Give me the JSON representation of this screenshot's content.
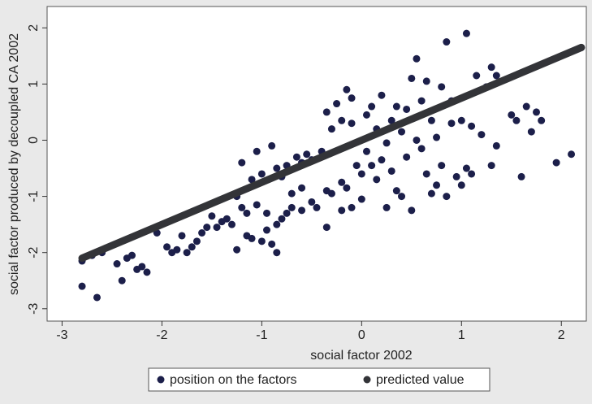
{
  "chart_data": {
    "type": "scatter",
    "x_label": "social factor 2002",
    "y_label": "social factor produced by decoupled CA 2002",
    "xlim": [
      -3.15,
      2.25
    ],
    "ylim": [
      -3.22,
      2.38
    ],
    "xticks": [
      -3,
      -2,
      -1,
      0,
      1,
      2
    ],
    "yticks": [
      -3,
      -2,
      -1,
      0,
      1,
      2
    ],
    "legend": "bottom",
    "series": [
      {
        "name": "position on the factors",
        "color": "#1c1f4a",
        "type": "scatter",
        "x": [
          -2.8,
          -2.65,
          -2.8,
          -2.7,
          -2.6,
          -2.45,
          -2.4,
          -2.35,
          -2.3,
          -2.25,
          -2.2,
          -2.15,
          -2.05,
          -1.95,
          -1.9,
          -1.85,
          -1.8,
          -1.75,
          -1.7,
          -1.65,
          -1.6,
          -1.55,
          -1.5,
          -1.45,
          -1.4,
          -1.35,
          -1.3,
          -1.25,
          -1.2,
          -1.15,
          -1.25,
          -1.15,
          -1.1,
          -1.05,
          -1.0,
          -0.95,
          -0.95,
          -0.9,
          -0.85,
          -0.8,
          -0.85,
          -0.75,
          -0.7,
          -1.2,
          -1.1,
          -1.05,
          -1.0,
          -0.9,
          -0.85,
          -0.8,
          -0.75,
          -0.7,
          -0.65,
          -0.6,
          -0.55,
          -0.5,
          -0.6,
          -0.5,
          -0.45,
          -0.4,
          -0.35,
          -0.35,
          -0.35,
          -0.3,
          -0.25,
          -0.2,
          -0.2,
          -0.15,
          -0.2,
          -0.1,
          -0.1,
          -0.05,
          -0.15,
          0.0,
          0.0,
          0.05,
          0.05,
          -0.1,
          0.1,
          0.1,
          0.15,
          0.15,
          0.2,
          0.2,
          0.25,
          0.25,
          0.3,
          0.3,
          0.35,
          0.35,
          0.4,
          0.4,
          0.45,
          0.45,
          0.5,
          0.5,
          0.55,
          0.55,
          0.6,
          0.6,
          0.65,
          0.65,
          0.7,
          0.7,
          0.75,
          0.75,
          0.8,
          0.8,
          0.85,
          0.85,
          0.9,
          0.9,
          0.95,
          1.0,
          1.0,
          1.05,
          1.05,
          1.1,
          1.1,
          1.15,
          1.2,
          1.25,
          1.3,
          1.3,
          1.35,
          1.35,
          1.5,
          1.55,
          1.6,
          1.65,
          1.7,
          1.75,
          1.8,
          1.95,
          2.1,
          2.2,
          -0.6,
          -0.3
        ],
        "values": [
          -2.6,
          -2.8,
          -2.15,
          -2.05,
          -2.0,
          -2.2,
          -2.5,
          -2.1,
          -2.05,
          -2.3,
          -2.25,
          -2.35,
          -1.65,
          -1.9,
          -2.0,
          -1.95,
          -1.7,
          -2.0,
          -1.9,
          -1.8,
          -1.65,
          -1.55,
          -1.35,
          -1.55,
          -1.45,
          -1.4,
          -1.5,
          -1.0,
          -1.2,
          -1.3,
          -1.95,
          -1.7,
          -1.75,
          -1.15,
          -1.8,
          -1.3,
          -1.6,
          -1.85,
          -1.5,
          -1.4,
          -2.0,
          -1.3,
          -1.2,
          -0.4,
          -0.7,
          -0.2,
          -0.6,
          -0.1,
          -0.5,
          -0.65,
          -0.45,
          -0.95,
          -0.3,
          -0.4,
          -0.25,
          -0.35,
          -1.25,
          -1.1,
          -1.2,
          -0.2,
          -0.9,
          -1.55,
          0.5,
          0.2,
          0.65,
          0.35,
          -0.75,
          -0.85,
          -1.25,
          0.3,
          0.75,
          -0.45,
          0.9,
          -0.6,
          -1.05,
          0.45,
          -0.2,
          -1.2,
          0.6,
          -0.45,
          0.2,
          -0.7,
          -0.35,
          0.8,
          -0.05,
          -1.2,
          -0.55,
          0.35,
          0.6,
          -0.9,
          0.15,
          -1.0,
          -0.3,
          0.55,
          1.1,
          -1.25,
          1.45,
          0.0,
          -0.15,
          0.7,
          1.05,
          -0.6,
          0.35,
          -0.95,
          0.05,
          -0.8,
          0.95,
          -0.45,
          -1.0,
          1.75,
          0.3,
          0.7,
          -0.65,
          0.35,
          -0.8,
          1.9,
          -0.5,
          0.25,
          -0.6,
          1.15,
          0.1,
          0.95,
          1.3,
          -0.45,
          1.15,
          -0.1,
          0.45,
          0.35,
          -0.65,
          0.6,
          0.15,
          0.5,
          0.35,
          -0.4,
          -0.25,
          1.65,
          -0.85,
          -0.95
        ]
      },
      {
        "name": "predicted value",
        "color": "#333438",
        "type": "line",
        "x": [
          -2.8,
          2.2
        ],
        "values": [
          -2.1,
          1.65
        ]
      }
    ]
  }
}
